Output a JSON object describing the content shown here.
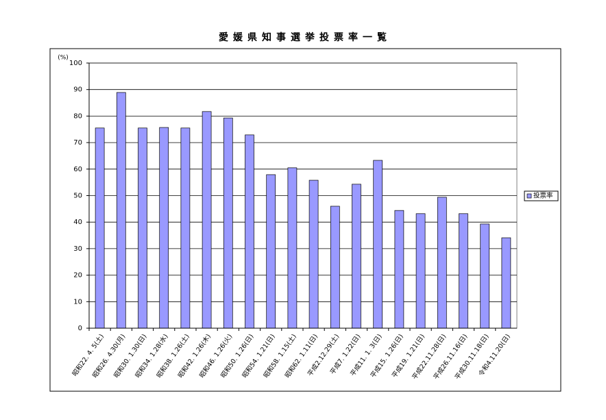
{
  "chart_data": {
    "type": "bar",
    "title": "愛媛県知事選挙投票率一覧",
    "y_unit": "(%)",
    "categories": [
      "昭和22. 4. 5(土)",
      "昭和26. 4.30(月)",
      "昭和30. 1.30(日)",
      "昭和34. 1.28(水)",
      "昭和38. 1.26(土)",
      "昭和42. 1.26(木)",
      "昭和46. 1.26(火)",
      "昭和50. 1.26(日)",
      "昭和54. 1.21(日)",
      "昭和58. 1.15(土)",
      "昭和62. 1.11(日)",
      "平成2.12.29(土)",
      "平成7. 1.22(日)",
      "平成11. 1. 3(日)",
      "平成15. 1.26(日)",
      "平成19. 1.21(日)",
      "平成22.11.28(日)",
      "平成26.11.16(日)",
      "平成30.11.18(日)",
      "令和4.11.20(日)"
    ],
    "series": [
      {
        "name": "投票率",
        "color": "#9999ff",
        "values": [
          75.5,
          88.9,
          75.5,
          75.7,
          75.5,
          81.7,
          79.3,
          72.9,
          57.9,
          60.5,
          55.8,
          46.0,
          54.3,
          63.3,
          44.4,
          43.2,
          49.4,
          43.2,
          39.3,
          34.1
        ]
      }
    ],
    "ylim": [
      0,
      100
    ],
    "yticks": [
      0,
      10,
      20,
      30,
      40,
      50,
      60,
      70,
      80,
      90,
      100
    ],
    "grid": true,
    "legend": "right"
  }
}
